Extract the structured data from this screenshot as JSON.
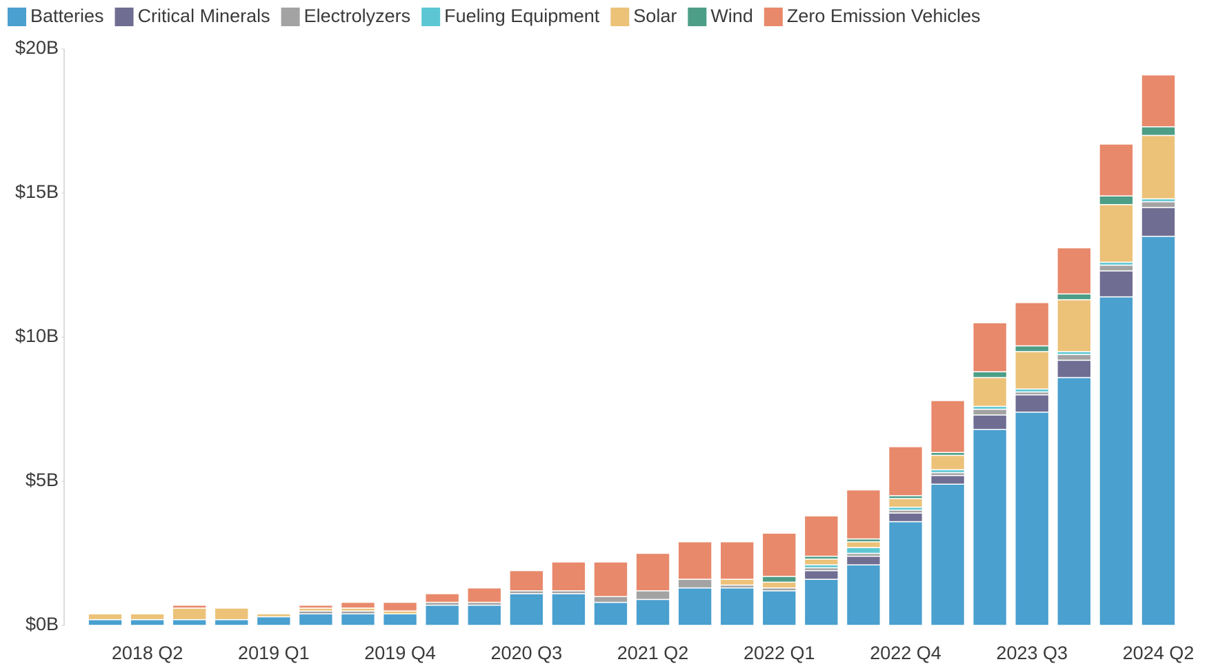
{
  "chart_data": {
    "type": "stacked_bar",
    "categories": [
      null,
      "2018 Q2",
      null,
      null,
      "2019 Q1",
      null,
      null,
      "2019 Q4",
      null,
      null,
      "2020 Q3",
      null,
      null,
      "2021 Q2",
      null,
      null,
      "2022 Q1",
      null,
      null,
      "2022 Q4",
      null,
      null,
      "2023 Q3",
      null,
      null,
      "2024 Q2"
    ],
    "series": [
      {
        "name": "Batteries",
        "color": "#4aa0cf",
        "values": [
          0.2,
          0.2,
          0.2,
          0.2,
          0.3,
          0.4,
          0.4,
          0.4,
          0.7,
          0.7,
          1.1,
          1.1,
          0.8,
          0.9,
          1.3,
          1.3,
          1.2,
          1.6,
          2.1,
          3.6,
          4.9,
          6.8,
          7.4,
          8.6,
          11.4,
          13.5
        ]
      },
      {
        "name": "Critical Minerals",
        "color": "#6f6d92",
        "values": [
          0,
          0,
          0,
          0,
          0,
          0,
          0,
          0,
          0,
          0,
          0,
          0,
          0,
          0,
          0,
          0,
          0,
          0.3,
          0.3,
          0.3,
          0.3,
          0.5,
          0.6,
          0.6,
          0.9,
          1.0
        ]
      },
      {
        "name": "Electrolyzers",
        "color": "#a3a3a3",
        "values": [
          0,
          0,
          0,
          0,
          0,
          0.1,
          0.1,
          0,
          0.1,
          0.1,
          0.1,
          0.1,
          0.2,
          0.3,
          0.3,
          0.1,
          0.1,
          0.1,
          0.1,
          0.1,
          0.1,
          0.2,
          0.1,
          0.2,
          0.2,
          0.2
        ]
      },
      {
        "name": "Fueling Equipment",
        "color": "#5cc7d3",
        "values": [
          0,
          0,
          0,
          0,
          0,
          0,
          0,
          0,
          0,
          0,
          0,
          0,
          0,
          0,
          0,
          0,
          0,
          0.1,
          0.2,
          0.1,
          0.1,
          0.1,
          0.1,
          0.1,
          0.1,
          0.1
        ]
      },
      {
        "name": "Solar",
        "color": "#ecc279",
        "values": [
          0.2,
          0.2,
          0.4,
          0.4,
          0.1,
          0.1,
          0.1,
          0.1,
          0,
          0,
          0,
          0,
          0,
          0,
          0,
          0.2,
          0.2,
          0.2,
          0.2,
          0.3,
          0.5,
          1.0,
          1.3,
          1.8,
          2.0,
          2.2
        ]
      },
      {
        "name": "Wind",
        "color": "#4d9e86",
        "values": [
          0,
          0,
          0,
          0,
          0,
          0,
          0,
          0,
          0,
          0,
          0,
          0,
          0,
          0,
          0,
          0,
          0.2,
          0.1,
          0.1,
          0.1,
          0.1,
          0.2,
          0.2,
          0.2,
          0.3,
          0.3
        ]
      },
      {
        "name": "Zero Emission Vehicles",
        "color": "#e8896b",
        "values": [
          0,
          0,
          0.1,
          0,
          0,
          0.1,
          0.2,
          0.3,
          0.3,
          0.5,
          0.7,
          1.0,
          1.2,
          1.3,
          1.3,
          1.3,
          1.5,
          1.4,
          1.7,
          1.7,
          1.8,
          1.7,
          1.5,
          1.6,
          1.8,
          1.8
        ]
      }
    ],
    "ylim": [
      0,
      20
    ],
    "yticks": [
      {
        "value": 0,
        "label": "$0B"
      },
      {
        "value": 5,
        "label": "$5B"
      },
      {
        "value": 10,
        "label": "$10B"
      },
      {
        "value": 15,
        "label": "$15B"
      },
      {
        "value": 20,
        "label": "$20B"
      }
    ]
  }
}
